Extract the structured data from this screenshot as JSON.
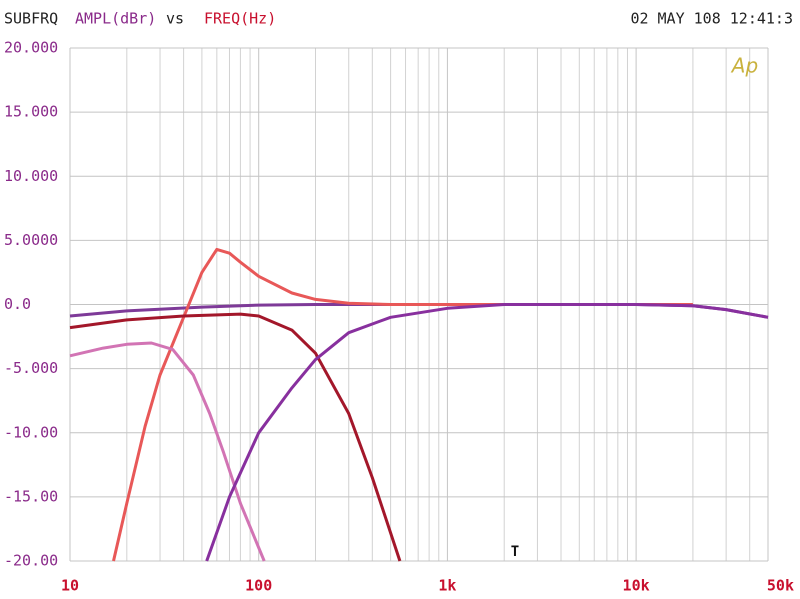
{
  "chart_data": {
    "type": "line",
    "title": "SUBFRQ",
    "ylabel": "AMPL(dBr)",
    "separator": "vs",
    "xlabel": "FREQ(Hz)",
    "timestamp": "02 MAY 108 12:41:3",
    "logo": "Ap",
    "marker": "T",
    "xscale": "log",
    "grid": true,
    "xlim": [
      10,
      50000
    ],
    "ylim": [
      -20,
      20
    ],
    "xticks": [
      10,
      100,
      {
        "value": 1000,
        "label": "1k"
      },
      {
        "value": 10000,
        "label": "10k"
      },
      {
        "value": 50000,
        "label": "50k"
      }
    ],
    "yticks": [
      {
        "value": 20,
        "label": "20.000"
      },
      {
        "value": 15,
        "label": "15.000"
      },
      {
        "value": 10,
        "label": "10.000"
      },
      {
        "value": 5,
        "label": "5.0000"
      },
      {
        "value": 0,
        "label": "0.0"
      },
      {
        "value": -5,
        "label": "-5.000"
      },
      {
        "value": -10,
        "label": "-10.00"
      },
      {
        "value": -15,
        "label": "-15.00"
      },
      {
        "value": -20,
        "label": "-20.00"
      }
    ],
    "title_color": "#222222",
    "ylabel_color": "#8a2a8a",
    "xlabel_color": "#c8102e",
    "series": [
      {
        "color": "#7e3a98",
        "x": [
          10,
          20,
          50,
          100,
          200,
          1000,
          5000,
          10000,
          20000,
          30000,
          50000
        ],
        "values": [
          -0.9,
          -0.5,
          -0.2,
          -0.05,
          0,
          0,
          0,
          0,
          -0.1,
          -0.4,
          -1
        ]
      },
      {
        "color": "#e85858",
        "x": [
          17,
          20,
          25,
          30,
          40,
          50,
          60,
          70,
          80,
          100,
          150,
          200,
          300,
          500,
          1000,
          5000,
          20000
        ],
        "values": [
          -20,
          -15.5,
          -9.5,
          -5.5,
          -1,
          2.5,
          4.3,
          4,
          3.3,
          2.2,
          0.9,
          0.4,
          0.1,
          0,
          0,
          0,
          0
        ]
      },
      {
        "color": "#a3172a",
        "x": [
          10,
          20,
          40,
          80,
          100,
          150,
          200,
          300,
          400,
          560
        ],
        "values": [
          -1.8,
          -1.2,
          -0.9,
          -0.75,
          -0.9,
          -2,
          -3.8,
          -8.5,
          -13.5,
          -20
        ]
      },
      {
        "color": "#d274b4",
        "x": [
          10,
          15,
          20,
          27,
          35,
          45,
          55,
          65,
          80,
          107
        ],
        "values": [
          -4,
          -3.4,
          -3.1,
          -3,
          -3.5,
          -5.5,
          -8.5,
          -11.5,
          -15.5,
          -20
        ]
      },
      {
        "color": "#88309e",
        "x": [
          53,
          70,
          100,
          150,
          200,
          300,
          500,
          1000,
          2000,
          5000,
          10000,
          20000,
          30000,
          50000
        ],
        "values": [
          -20,
          -15,
          -10,
          -6.5,
          -4.3,
          -2.2,
          -1,
          -0.3,
          0,
          0,
          0,
          -0.1,
          -0.4,
          -1
        ]
      }
    ]
  }
}
